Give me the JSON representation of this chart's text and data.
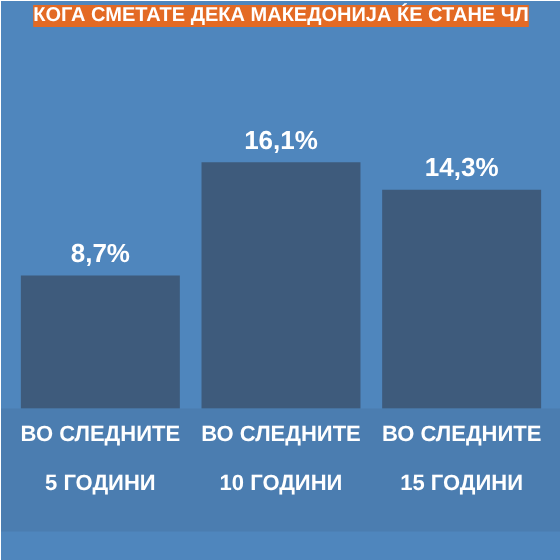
{
  "chart_data": {
    "type": "bar",
    "title": "КОГА СМЕТАТЕ ДЕКА МАКЕДОНИЈА ЌЕ СТАНЕ ЧЛ",
    "categories": [
      "ВО СЛЕДНИТЕ\n5 ГОДИНИ",
      "ВО СЛЕДНИТЕ\n10 ГОДИНИ",
      "ВО СЛЕДНИТЕ\n15 ГОДИНИ"
    ],
    "values": [
      8.7,
      16.1,
      14.3
    ],
    "value_labels": [
      "8,7%",
      "16,1%",
      "14,3%"
    ],
    "color": "#3e5b7c",
    "grid": false
  }
}
